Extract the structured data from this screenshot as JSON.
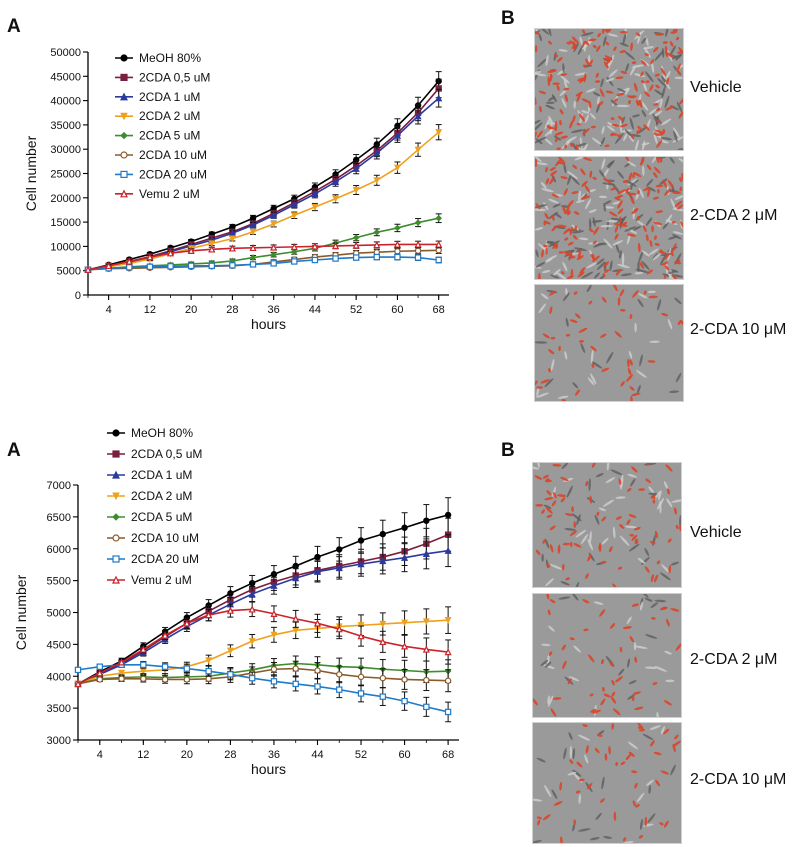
{
  "figure_top": {
    "panel_a_label": "A",
    "panel_b_label": "B",
    "conditions": [
      {
        "label": "Vehicle",
        "density": "high"
      },
      {
        "label": "2-CDA 2 μM",
        "density": "high"
      },
      {
        "label": "2-CDA 10 μM",
        "density": "low"
      }
    ]
  },
  "figure_bottom": {
    "panel_a_label": "A",
    "panel_b_label": "B",
    "conditions": [
      {
        "label": "Vehicle",
        "density": "medium"
      },
      {
        "label": "2-CDA 2 μM",
        "density": "low"
      },
      {
        "label": "2-CDA 10 μM",
        "density": "low"
      }
    ]
  },
  "colors": {
    "cell_stain": "#d9462a",
    "micro_bg": "#9a9a9a"
  },
  "chart_data": [
    {
      "type": "line",
      "title": "",
      "xlabel": "hours",
      "ylabel": "Cell number",
      "xlim": [
        0,
        70
      ],
      "ylim": [
        0,
        50000
      ],
      "xticks": [
        4,
        12,
        20,
        28,
        36,
        44,
        52,
        60,
        68
      ],
      "yticks": [
        0,
        5000,
        10000,
        15000,
        20000,
        25000,
        30000,
        35000,
        40000,
        45000,
        50000
      ],
      "legend_position": "top-left",
      "x": [
        0,
        4,
        8,
        12,
        16,
        20,
        24,
        28,
        32,
        36,
        40,
        44,
        48,
        52,
        56,
        60,
        64,
        68
      ],
      "series": [
        {
          "name": "MeOH 80%",
          "color": "#000000",
          "marker": "circle-filled",
          "values": [
            5200,
            6200,
            7300,
            8400,
            9700,
            11000,
            12500,
            14000,
            15800,
            17800,
            19800,
            22200,
            24800,
            27800,
            31000,
            34800,
            39000,
            44000
          ]
        },
        {
          "name": "2CDA 0,5 uM",
          "color": "#7a1f3d",
          "marker": "square-filled",
          "values": [
            5200,
            6000,
            6900,
            7900,
            9100,
            10400,
            11700,
            13000,
            14700,
            16800,
            19000,
            21300,
            23800,
            26600,
            29700,
            33300,
            37500,
            42500
          ]
        },
        {
          "name": "2CDA 1 uM",
          "color": "#2b3a9e",
          "marker": "triangle-filled",
          "values": [
            5200,
            5900,
            6700,
            7700,
            8900,
            10100,
            11300,
            12700,
            14400,
            16400,
            18600,
            20800,
            23300,
            26000,
            29200,
            32800,
            36800,
            40500
          ]
        },
        {
          "name": "2CDA 2 uM",
          "color": "#f0a11c",
          "marker": "triangle-down",
          "values": [
            5200,
            5800,
            6500,
            7400,
            8500,
            9600,
            10600,
            11600,
            13000,
            14600,
            16400,
            18100,
            19800,
            21600,
            23600,
            26200,
            29900,
            33500
          ]
        },
        {
          "name": "2CDA 5 uM",
          "color": "#3e8d2d",
          "marker": "diamond-filled",
          "values": [
            5200,
            5500,
            5800,
            6000,
            6200,
            6400,
            6600,
            7000,
            7700,
            8300,
            8900,
            9600,
            10700,
            11800,
            12900,
            13800,
            14900,
            15800
          ]
        },
        {
          "name": "2CDA 10 uM",
          "color": "#8b5a2b",
          "marker": "circle-open",
          "values": [
            5200,
            5400,
            5500,
            5600,
            5700,
            5800,
            5900,
            6000,
            6300,
            6800,
            7300,
            7800,
            8200,
            8600,
            8800,
            9000,
            9100,
            9200
          ]
        },
        {
          "name": "2CDA 20 uM",
          "color": "#1f7ac9",
          "marker": "square-open",
          "values": [
            5200,
            5500,
            5700,
            5800,
            5900,
            6000,
            6000,
            6100,
            6300,
            6500,
            6900,
            7200,
            7500,
            7700,
            7800,
            7800,
            7700,
            7200
          ]
        },
        {
          "name": "Vemu 2 uM",
          "color": "#c8242b",
          "marker": "triangle-open",
          "values": [
            5200,
            6000,
            6900,
            7800,
            8600,
            9100,
            9400,
            9600,
            9700,
            9800,
            9900,
            10000,
            10100,
            10200,
            10300,
            10400,
            10400,
            10400
          ]
        }
      ]
    },
    {
      "type": "line",
      "title": "",
      "xlabel": "hours",
      "ylabel": "Cell number",
      "xlim": [
        0,
        70
      ],
      "ylim": [
        3000,
        7000
      ],
      "xticks": [
        4,
        12,
        20,
        28,
        36,
        44,
        52,
        60,
        68
      ],
      "yticks": [
        3000,
        3500,
        4000,
        4500,
        5000,
        5500,
        6000,
        6500,
        7000
      ],
      "legend_position": "top-left",
      "x": [
        0,
        4,
        8,
        12,
        16,
        20,
        24,
        28,
        32,
        36,
        40,
        44,
        48,
        52,
        56,
        60,
        64,
        68
      ],
      "series": [
        {
          "name": "MeOH 80%",
          "color": "#000000",
          "marker": "circle-filled",
          "values": [
            3880,
            4070,
            4240,
            4470,
            4700,
            4920,
            5110,
            5300,
            5460,
            5600,
            5730,
            5870,
            5990,
            6130,
            6230,
            6330,
            6440,
            6530
          ]
        },
        {
          "name": "2CDA 0,5 uM",
          "color": "#7a1f3d",
          "marker": "square-filled",
          "values": [
            3880,
            4050,
            4200,
            4400,
            4620,
            4830,
            5020,
            5200,
            5360,
            5480,
            5580,
            5660,
            5730,
            5800,
            5870,
            5960,
            6080,
            6220
          ]
        },
        {
          "name": "2CDA 1 uM",
          "color": "#2b3a9e",
          "marker": "triangle-filled",
          "values": [
            3880,
            4030,
            4180,
            4370,
            4580,
            4780,
            4960,
            5130,
            5290,
            5420,
            5540,
            5640,
            5700,
            5760,
            5810,
            5860,
            5920,
            5970
          ]
        },
        {
          "name": "2CDA 2 uM",
          "color": "#f0a11c",
          "marker": "triangle-down",
          "values": [
            3880,
            4000,
            4050,
            4080,
            4100,
            4150,
            4250,
            4400,
            4550,
            4650,
            4720,
            4750,
            4780,
            4800,
            4820,
            4840,
            4860,
            4880
          ]
        },
        {
          "name": "2CDA 5 uM",
          "color": "#3e8d2d",
          "marker": "diamond-filled",
          "values": [
            3880,
            3960,
            3980,
            3990,
            3980,
            3990,
            4000,
            4050,
            4100,
            4170,
            4200,
            4180,
            4150,
            4140,
            4110,
            4090,
            4070,
            4080
          ]
        },
        {
          "name": "2CDA 10 uM",
          "color": "#8b5a2b",
          "marker": "circle-open",
          "values": [
            3880,
            3950,
            3960,
            3960,
            3950,
            3950,
            3960,
            3990,
            4050,
            4110,
            4120,
            4090,
            4030,
            3990,
            3970,
            3950,
            3940,
            3930
          ]
        },
        {
          "name": "2CDA 20 uM",
          "color": "#1f7ac9",
          "marker": "square-open",
          "values": [
            4100,
            4150,
            4180,
            4180,
            4150,
            4120,
            4080,
            4030,
            3970,
            3920,
            3880,
            3840,
            3790,
            3730,
            3680,
            3610,
            3520,
            3440
          ]
        },
        {
          "name": "Vemu 2 uM",
          "color": "#c8242b",
          "marker": "triangle-open",
          "values": [
            3880,
            4050,
            4220,
            4420,
            4640,
            4830,
            4960,
            5030,
            5050,
            4980,
            4900,
            4830,
            4740,
            4630,
            4540,
            4470,
            4420,
            4380
          ]
        }
      ]
    }
  ]
}
